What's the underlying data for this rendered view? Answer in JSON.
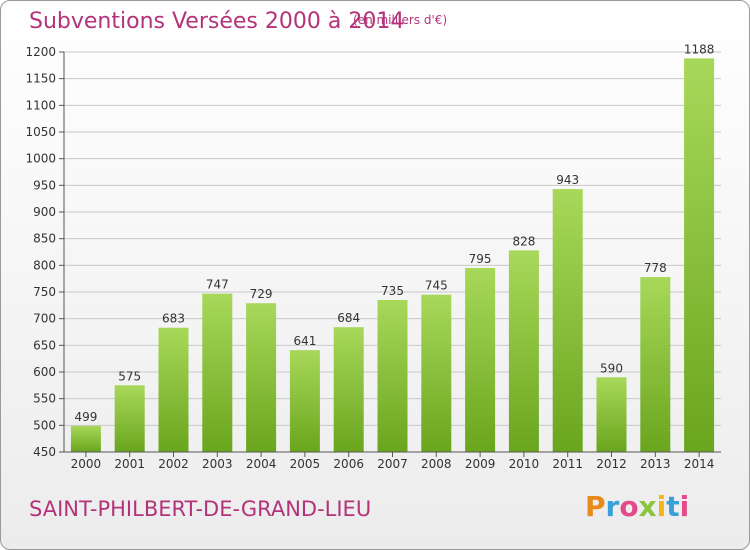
{
  "header": {
    "title": "Subventions Versées 2000 à 2014",
    "unit_note": "(en milliers d'€)"
  },
  "footer": {
    "place": "SAINT-PHILBERT-DE-GRAND-LIEU",
    "logo_text": "Proxiti",
    "logo_colors": [
      "#e8891c",
      "#3aa0d8",
      "#e24a8a",
      "#8bc53f",
      "#f2b61b",
      "#3aa0d8",
      "#e24a8a"
    ]
  },
  "colors": {
    "title": "#b3337a",
    "bar_top": "#a8d85a",
    "bar_bottom": "#6aa51e",
    "grid": "#c8c8c8",
    "axis_text": "#333333"
  },
  "chart_data": {
    "type": "bar",
    "categories": [
      "2000",
      "2001",
      "2002",
      "2003",
      "2004",
      "2005",
      "2006",
      "2007",
      "2008",
      "2009",
      "2010",
      "2011",
      "2012",
      "2013",
      "2014"
    ],
    "values": [
      499,
      575,
      683,
      747,
      729,
      641,
      684,
      735,
      745,
      795,
      828,
      943,
      590,
      778,
      1188
    ],
    "ylim": [
      450,
      1200
    ],
    "yticks": [
      450,
      500,
      550,
      600,
      650,
      700,
      750,
      800,
      850,
      900,
      950,
      1000,
      1050,
      1100,
      1150,
      1200
    ],
    "grid": true
  }
}
